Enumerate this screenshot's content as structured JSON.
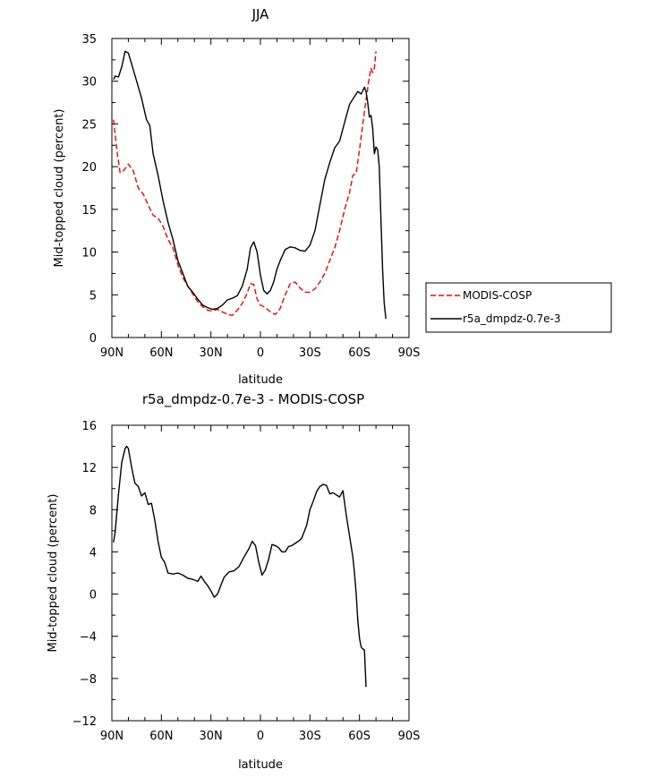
{
  "chart_data": [
    {
      "type": "line",
      "title": "JJA",
      "xlabel": "latitude",
      "ylabel": "Mid-topped cloud (percent)",
      "xlim": [
        90,
        -90
      ],
      "ylim": [
        0,
        35
      ],
      "xticks": [
        90,
        60,
        30,
        0,
        -30,
        -60,
        -90
      ],
      "xtick_labels": [
        "90N",
        "60N",
        "30N",
        "0",
        "30S",
        "60S",
        "90S"
      ],
      "yticks": [
        0,
        5,
        10,
        15,
        20,
        25,
        30,
        35
      ],
      "ytick_labels": [
        "0",
        "5",
        "10",
        "15",
        "20",
        "25",
        "30",
        "35"
      ],
      "grid": false,
      "legend_position": "right",
      "series": [
        {
          "name": "MODIS-COSP",
          "color": "#ff0000",
          "dash": "dashed",
          "points": [
            [
              89,
              25.5
            ],
            [
              87,
              22
            ],
            [
              85,
              19.3
            ],
            [
              83,
              19.5
            ],
            [
              80,
              20.3
            ],
            [
              77,
              19.5
            ],
            [
              74,
              17.5
            ],
            [
              71,
              16.8
            ],
            [
              68,
              15.5
            ],
            [
              65,
              14.3
            ],
            [
              62,
              14.0
            ],
            [
              59,
              13
            ],
            [
              56,
              11.5
            ],
            [
              53,
              10.5
            ],
            [
              50,
              8.5
            ],
            [
              47,
              7
            ],
            [
              44,
              6
            ],
            [
              41,
              5.1
            ],
            [
              38,
              4.2
            ],
            [
              35,
              3.6
            ],
            [
              32,
              3.2
            ],
            [
              29,
              3.1
            ],
            [
              26,
              3.3
            ],
            [
              23,
              3.0
            ],
            [
              20,
              2.7
            ],
            [
              17,
              2.6
            ],
            [
              14,
              3.2
            ],
            [
              11,
              4.0
            ],
            [
              8,
              5.2
            ],
            [
              6,
              6.3
            ],
            [
              4,
              6.2
            ],
            [
              2,
              4.5
            ],
            [
              0,
              3.8
            ],
            [
              -3,
              3.5
            ],
            [
              -6,
              3.0
            ],
            [
              -9,
              2.7
            ],
            [
              -12,
              3.4
            ],
            [
              -15,
              5.0
            ],
            [
              -18,
              6.3
            ],
            [
              -21,
              6.5
            ],
            [
              -24,
              5.8
            ],
            [
              -27,
              5.3
            ],
            [
              -30,
              5.3
            ],
            [
              -33,
              5.7
            ],
            [
              -36,
              6.5
            ],
            [
              -39,
              7.5
            ],
            [
              -42,
              9
            ],
            [
              -45,
              10.5
            ],
            [
              -48,
              12.5
            ],
            [
              -51,
              15
            ],
            [
              -54,
              17
            ],
            [
              -56,
              19
            ],
            [
              -58,
              19.2
            ],
            [
              -60,
              22
            ],
            [
              -62,
              25
            ],
            [
              -64,
              27.8
            ],
            [
              -66,
              30.5
            ],
            [
              -67,
              31.5
            ],
            [
              -68,
              31
            ],
            [
              -69,
              31.5
            ],
            [
              -70,
              33.5
            ]
          ]
        },
        {
          "name": "r5a_dmpdz-0.7e-3",
          "color": "#000000",
          "dash": "solid",
          "points": [
            [
              89,
              30.2
            ],
            [
              88,
              30.6
            ],
            [
              86,
              30.5
            ],
            [
              84,
              31.7
            ],
            [
              82,
              33.5
            ],
            [
              80,
              33.3
            ],
            [
              78,
              32
            ],
            [
              75,
              30
            ],
            [
              72,
              28
            ],
            [
              69,
              25.5
            ],
            [
              67,
              24.8
            ],
            [
              65,
              21.5
            ],
            [
              62,
              19
            ],
            [
              59,
              16
            ],
            [
              56,
              13.5
            ],
            [
              53,
              11.5
            ],
            [
              50,
              9
            ],
            [
              47,
              7.5
            ],
            [
              44,
              6
            ],
            [
              41,
              5.3
            ],
            [
              38,
              4.5
            ],
            [
              35,
              3.8
            ],
            [
              32,
              3.5
            ],
            [
              29,
              3.3
            ],
            [
              26,
              3.4
            ],
            [
              23,
              3.8
            ],
            [
              20,
              4.4
            ],
            [
              17,
              4.6
            ],
            [
              14,
              4.9
            ],
            [
              11,
              6.0
            ],
            [
              8,
              8.0
            ],
            [
              6,
              10.5
            ],
            [
              4,
              11.2
            ],
            [
              2,
              10
            ],
            [
              0,
              7.3
            ],
            [
              -2,
              5.5
            ],
            [
              -4,
              5.1
            ],
            [
              -6,
              5.5
            ],
            [
              -8,
              6.5
            ],
            [
              -10,
              8.0
            ],
            [
              -12,
              9.0
            ],
            [
              -15,
              10.3
            ],
            [
              -18,
              10.6
            ],
            [
              -21,
              10.5
            ],
            [
              -24,
              10.2
            ],
            [
              -27,
              10.1
            ],
            [
              -30,
              10.8
            ],
            [
              -33,
              12.5
            ],
            [
              -36,
              15.5
            ],
            [
              -39,
              18.5
            ],
            [
              -42,
              20.5
            ],
            [
              -45,
              22.2
            ],
            [
              -48,
              23
            ],
            [
              -51,
              25.2
            ],
            [
              -54,
              27.3
            ],
            [
              -57,
              28.2
            ],
            [
              -59,
              28.8
            ],
            [
              -61,
              28.5
            ],
            [
              -63,
              29.3
            ],
            [
              -64,
              28.8
            ],
            [
              -65,
              27.5
            ],
            [
              -66,
              25.8
            ],
            [
              -67,
              26
            ],
            [
              -68,
              24.5
            ],
            [
              -69,
              21.5
            ],
            [
              -70,
              22.3
            ],
            [
              -71,
              22
            ],
            [
              -72,
              20
            ],
            [
              -73,
              14
            ],
            [
              -74,
              8
            ],
            [
              -75,
              4
            ],
            [
              -76,
              2.2
            ]
          ]
        }
      ]
    },
    {
      "type": "line",
      "title": "r5a_dmpdz-0.7e-3 - MODIS-COSP",
      "xlabel": "latitude",
      "ylabel": "Mid-topped cloud (percent)",
      "xlim": [
        90,
        -90
      ],
      "ylim": [
        -12,
        16
      ],
      "xticks": [
        90,
        60,
        30,
        0,
        -30,
        -60,
        -90
      ],
      "xtick_labels": [
        "90N",
        "60N",
        "30N",
        "0",
        "30S",
        "60S",
        "90S"
      ],
      "yticks": [
        -12,
        -8,
        -4,
        0,
        4,
        8,
        12,
        16
      ],
      "ytick_labels": [
        "−12",
        "−8",
        "−4",
        "0",
        "4",
        "8",
        "12",
        "16"
      ],
      "grid": false,
      "series": [
        {
          "color": "#000000",
          "dash": "solid",
          "points": [
            [
              89,
              4.9
            ],
            [
              88,
              5.9
            ],
            [
              86,
              9.5
            ],
            [
              84,
              12.5
            ],
            [
              82,
              13.8
            ],
            [
              81,
              14.0
            ],
            [
              80,
              13.8
            ],
            [
              78,
              12
            ],
            [
              76,
              10.5
            ],
            [
              74,
              10.2
            ],
            [
              72,
              9.3
            ],
            [
              70,
              9.6
            ],
            [
              68,
              8.5
            ],
            [
              66,
              8.6
            ],
            [
              64,
              7
            ],
            [
              62,
              5
            ],
            [
              60,
              3.5
            ],
            [
              58,
              3
            ],
            [
              56,
              2
            ],
            [
              53,
              1.9
            ],
            [
              50,
              2.0
            ],
            [
              47,
              1.8
            ],
            [
              44,
              1.5
            ],
            [
              41,
              1.4
            ],
            [
              38,
              1.2
            ],
            [
              36,
              1.7
            ],
            [
              34,
              1.2
            ],
            [
              32,
              0.8
            ],
            [
              30,
              0.3
            ],
            [
              28,
              -0.3
            ],
            [
              26,
              0
            ],
            [
              24,
              0.8
            ],
            [
              22,
              1.6
            ],
            [
              19,
              2.1
            ],
            [
              16,
              2.2
            ],
            [
              13,
              2.6
            ],
            [
              10,
              3.5
            ],
            [
              7,
              4.3
            ],
            [
              5,
              5.0
            ],
            [
              3,
              4.6
            ],
            [
              1,
              3.0
            ],
            [
              -1,
              1.8
            ],
            [
              -3,
              2.3
            ],
            [
              -5,
              3.3
            ],
            [
              -7,
              4.7
            ],
            [
              -9,
              4.6
            ],
            [
              -11,
              4.4
            ],
            [
              -13,
              4.0
            ],
            [
              -15,
              4.0
            ],
            [
              -17,
              4.5
            ],
            [
              -19,
              4.6
            ],
            [
              -21,
              4.8
            ],
            [
              -23,
              5.0
            ],
            [
              -25,
              5.3
            ],
            [
              -28,
              6.5
            ],
            [
              -30,
              8.0
            ],
            [
              -32,
              8.8
            ],
            [
              -34,
              9.7
            ],
            [
              -36,
              10.2
            ],
            [
              -38,
              10.4
            ],
            [
              -40,
              10.3
            ],
            [
              -42,
              9.5
            ],
            [
              -44,
              9.6
            ],
            [
              -46,
              9.4
            ],
            [
              -48,
              9.2
            ],
            [
              -50,
              9.8
            ],
            [
              -52,
              7.5
            ],
            [
              -54,
              5.5
            ],
            [
              -56,
              3.5
            ],
            [
              -57,
              2
            ],
            [
              -58,
              0
            ],
            [
              -59,
              -2.5
            ],
            [
              -60,
              -4.2
            ],
            [
              -61,
              -5
            ],
            [
              -62,
              -5.2
            ],
            [
              -63,
              -5.3
            ],
            [
              -64,
              -8.8
            ]
          ]
        }
      ]
    }
  ],
  "legend": {
    "entries": [
      {
        "label": "MODIS-COSP",
        "color": "#ff0000",
        "dash": "dashed"
      },
      {
        "label": "r5a_dmpdz-0.7e-3",
        "color": "#000000",
        "dash": "solid"
      }
    ]
  }
}
